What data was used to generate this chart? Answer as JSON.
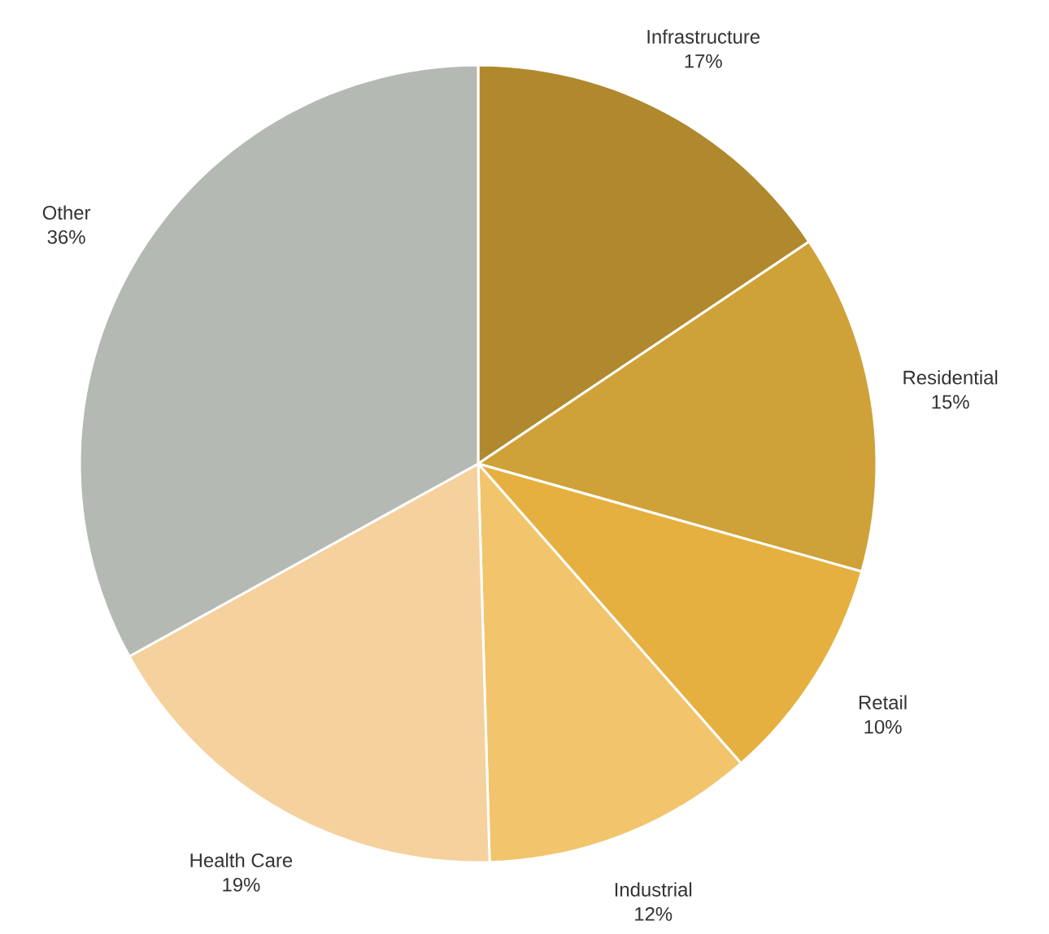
{
  "chart_data": {
    "type": "pie",
    "categories": [
      "Infrastructure",
      "Residential",
      "Retail",
      "Industrial",
      "Health Care",
      "Other"
    ],
    "values": [
      17,
      15,
      10,
      12,
      19,
      36
    ],
    "value_labels": [
      "17%",
      "15%",
      "10%",
      "12%",
      "19%",
      "36%"
    ],
    "colors": [
      "#b0892e",
      "#cfa139",
      "#e5b03f",
      "#f2c46c",
      "#f5d19e",
      "#b4bab3"
    ]
  }
}
